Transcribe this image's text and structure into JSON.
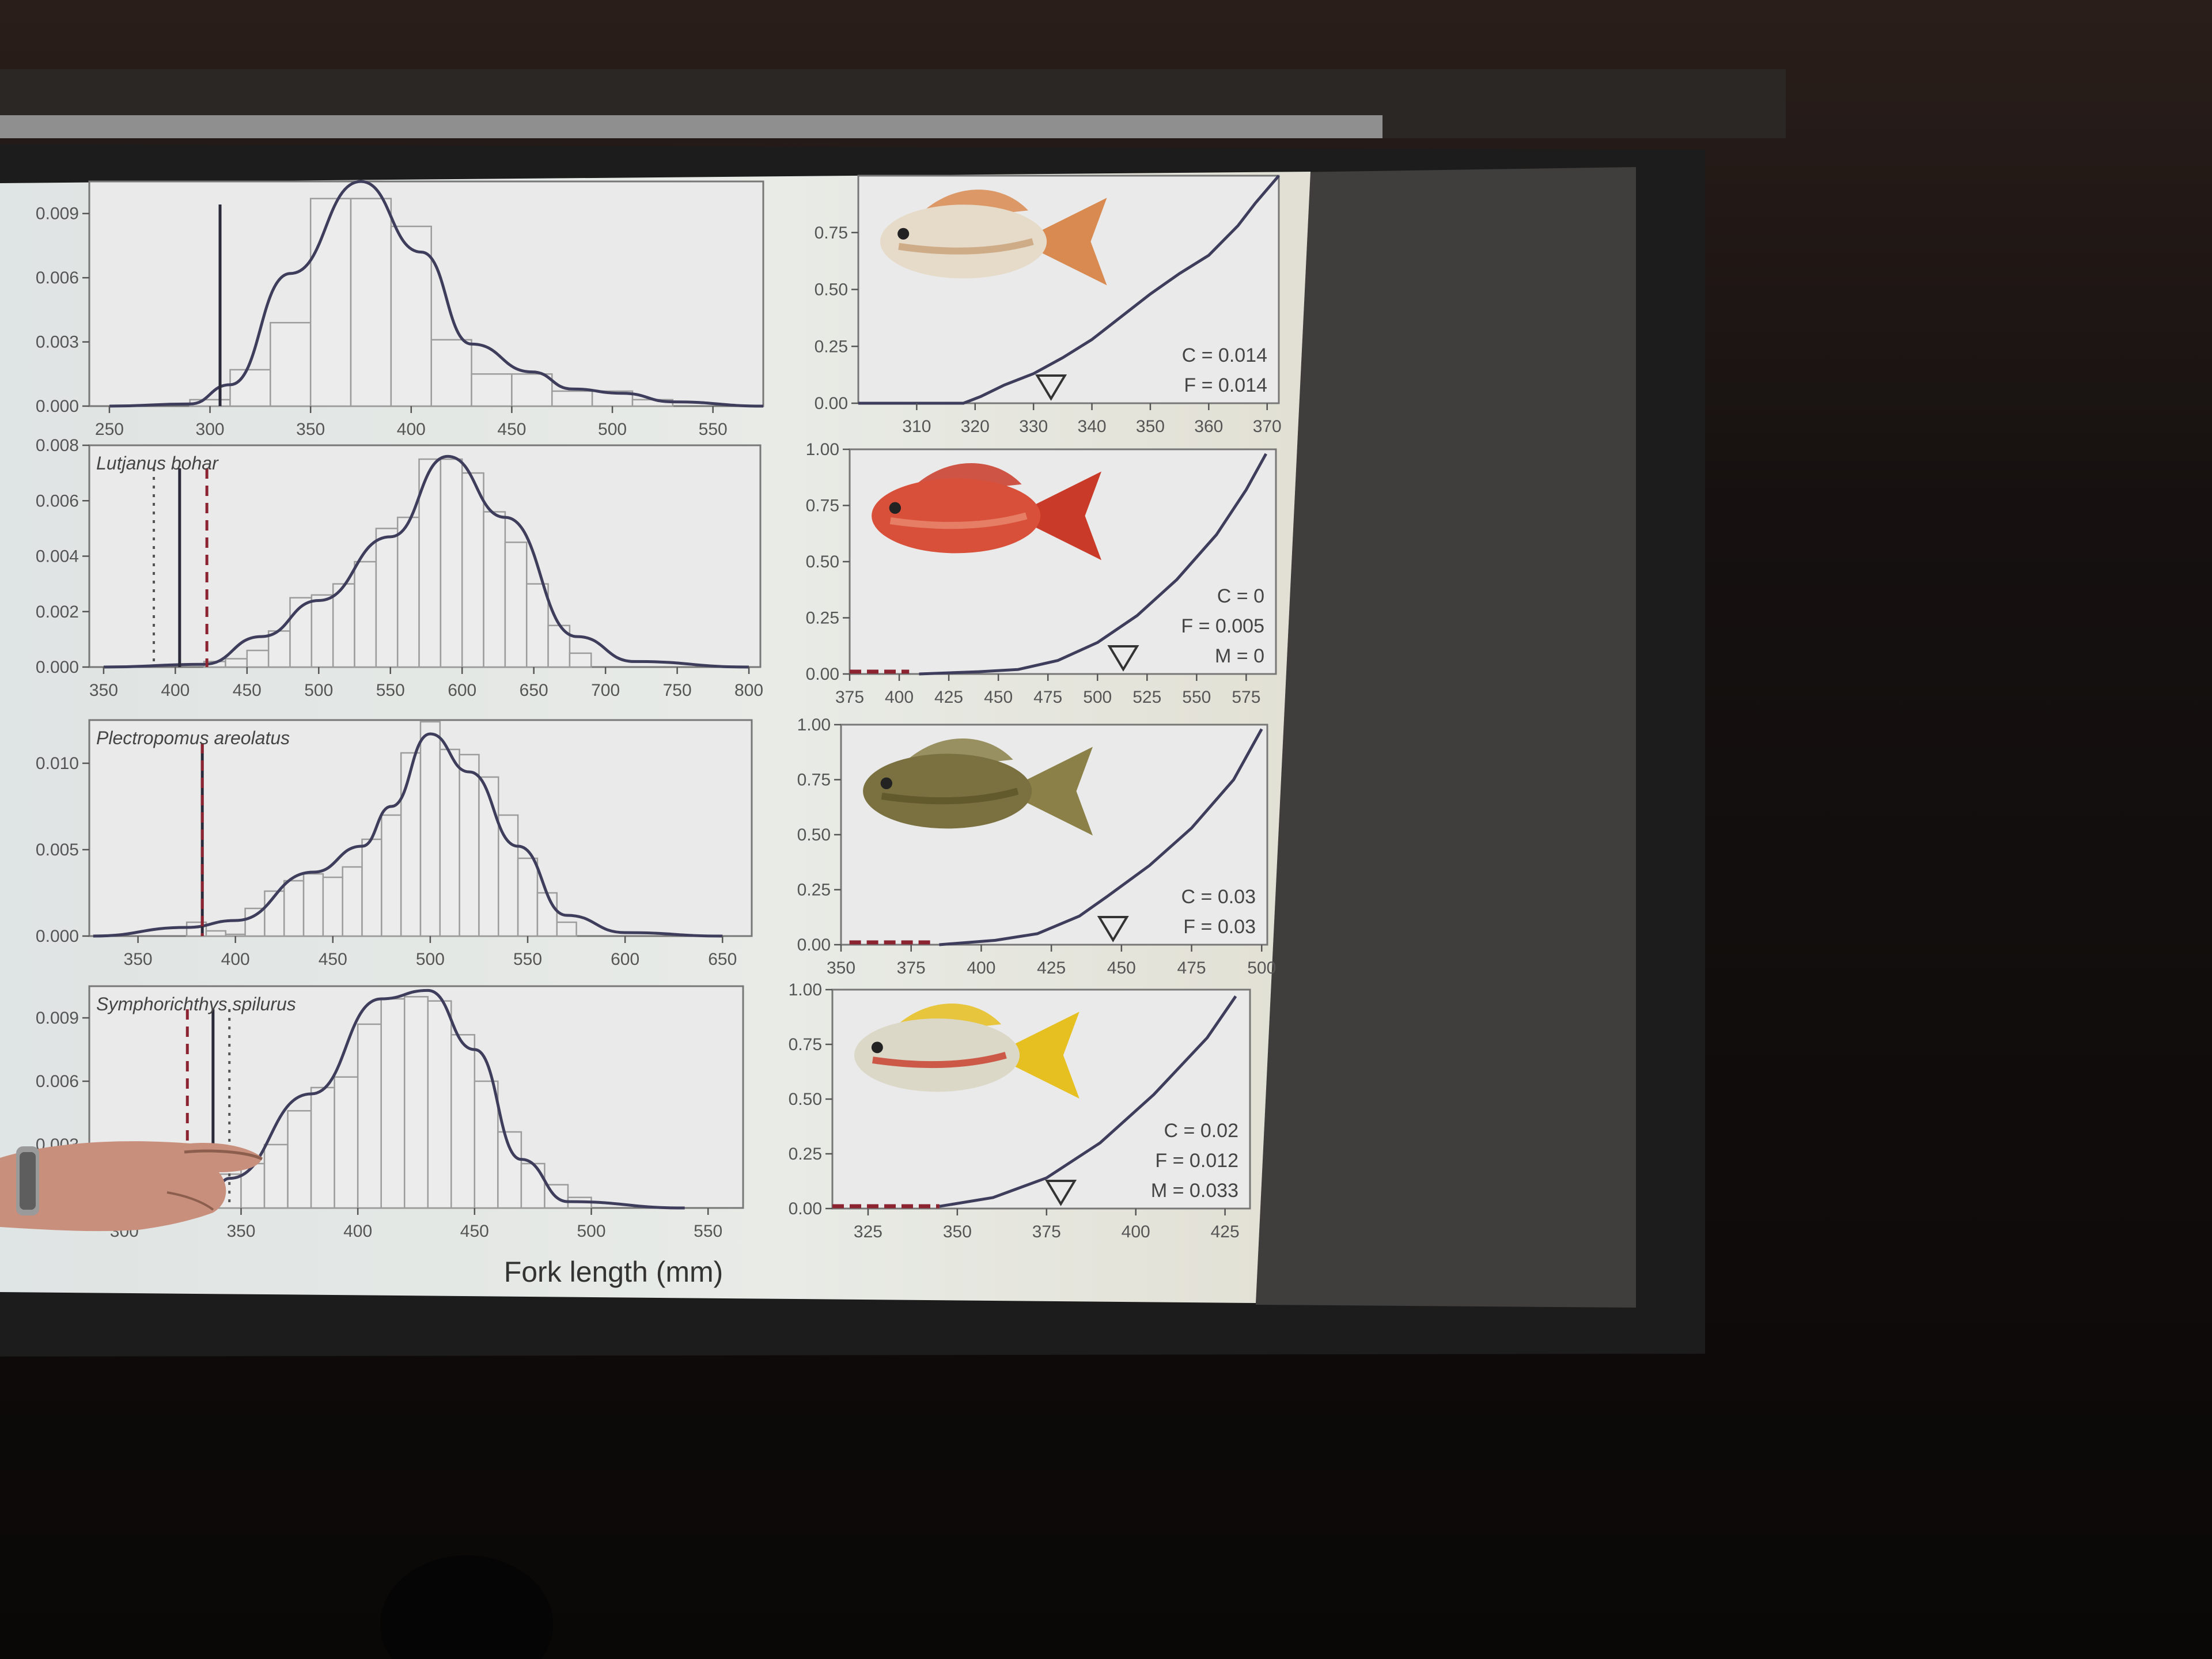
{
  "xlabel": "Fork length (mm)",
  "colors": {
    "curve": "#3e3d5c",
    "solid_line": "#2a2a3a",
    "dashed_line": "#8b2330",
    "bar_fill": "#ececec",
    "bar_edge": "#9c9c9c",
    "panel_bg": "#eaeaea"
  },
  "chart_data": [
    {
      "type": "bar",
      "panel": "histogram",
      "species": "",
      "xlim": [
        240,
        575
      ],
      "ylim": [
        0,
        0.0105
      ],
      "xticks": [
        250,
        300,
        350,
        400,
        450,
        500,
        550
      ],
      "yticks": [
        0,
        0.003,
        0.006,
        0.009
      ],
      "ytick_labels": [
        "0.000",
        "0.003",
        "0.006",
        "0.009"
      ],
      "bins": [
        [
          290,
          310,
          0.0003
        ],
        [
          310,
          330,
          0.0017
        ],
        [
          330,
          350,
          0.0039
        ],
        [
          350,
          370,
          0.0097
        ],
        [
          370,
          390,
          0.0097
        ],
        [
          390,
          410,
          0.0084
        ],
        [
          410,
          430,
          0.0031
        ],
        [
          430,
          450,
          0.0015
        ],
        [
          450,
          470,
          0.0015
        ],
        [
          470,
          490,
          0.0007
        ],
        [
          490,
          510,
          0.0007
        ],
        [
          510,
          530,
          0.0003
        ]
      ],
      "density": [
        [
          250,
          0.0
        ],
        [
          290,
          0.0001
        ],
        [
          310,
          0.001
        ],
        [
          340,
          0.0062
        ],
        [
          375,
          0.0105
        ],
        [
          405,
          0.0072
        ],
        [
          430,
          0.0029
        ],
        [
          460,
          0.0016
        ],
        [
          480,
          0.0008
        ],
        [
          505,
          0.0006
        ],
        [
          530,
          0.0002
        ],
        [
          575,
          0.0
        ]
      ],
      "vlines": [
        {
          "x": 305,
          "style": "solid"
        }
      ]
    },
    {
      "type": "line",
      "panel": "cumulative",
      "xlim": [
        300,
        372
      ],
      "ylim": [
        0,
        1
      ],
      "xticks": [
        310,
        320,
        330,
        340,
        350,
        360,
        370
      ],
      "yticks": [
        0,
        0.25,
        0.5,
        0.75
      ],
      "ytick_labels": [
        "0.00",
        "0.25",
        "0.50",
        "0.75"
      ],
      "x": [
        300,
        308,
        318,
        321,
        325,
        330,
        335,
        340,
        345,
        350,
        355,
        360,
        365,
        368,
        372
      ],
      "y": [
        0,
        0,
        0,
        0.03,
        0.08,
        0.13,
        0.2,
        0.28,
        0.38,
        0.48,
        0.57,
        0.65,
        0.78,
        0.88,
        1.0
      ],
      "marker_x": 333,
      "annotations": [
        "C = 0.014",
        "F = 0.014"
      ]
    },
    {
      "type": "bar",
      "panel": "histogram",
      "species": "Lutjanus bohar",
      "xlim": [
        340,
        808
      ],
      "ylim": [
        0,
        0.008
      ],
      "xticks": [
        350,
        400,
        450,
        500,
        550,
        600,
        650,
        700,
        750,
        800
      ],
      "yticks": [
        0,
        0.002,
        0.004,
        0.006,
        0.008
      ],
      "ytick_labels": [
        "0.000",
        "0.002",
        "0.004",
        "0.006",
        "0.008"
      ],
      "bins": [
        [
          420,
          435,
          0.0002
        ],
        [
          435,
          450,
          0.0003
        ],
        [
          450,
          465,
          0.0006
        ],
        [
          465,
          480,
          0.0013
        ],
        [
          480,
          495,
          0.0025
        ],
        [
          495,
          510,
          0.0026
        ],
        [
          510,
          525,
          0.003
        ],
        [
          525,
          540,
          0.0038
        ],
        [
          540,
          555,
          0.005
        ],
        [
          555,
          570,
          0.0054
        ],
        [
          570,
          585,
          0.0075
        ],
        [
          585,
          600,
          0.0075
        ],
        [
          600,
          615,
          0.007
        ],
        [
          615,
          630,
          0.0056
        ],
        [
          630,
          645,
          0.0045
        ],
        [
          645,
          660,
          0.003
        ],
        [
          660,
          675,
          0.0015
        ],
        [
          675,
          690,
          0.0005
        ]
      ],
      "density": [
        [
          350,
          0.0
        ],
        [
          420,
          0.0001
        ],
        [
          460,
          0.0011
        ],
        [
          500,
          0.0024
        ],
        [
          550,
          0.0047
        ],
        [
          590,
          0.0076
        ],
        [
          630,
          0.0054
        ],
        [
          680,
          0.0011
        ],
        [
          720,
          0.0002
        ],
        [
          800,
          0.0
        ]
      ],
      "vlines": [
        {
          "x": 403,
          "style": "solid"
        },
        {
          "x": 422,
          "style": "dashed"
        },
        {
          "x": 385,
          "style": "dotted"
        }
      ]
    },
    {
      "type": "line",
      "panel": "cumulative",
      "xlim": [
        375,
        590
      ],
      "ylim": [
        0,
        1
      ],
      "xticks": [
        375,
        400,
        425,
        450,
        475,
        500,
        525,
        550,
        575
      ],
      "yticks": [
        0,
        0.25,
        0.5,
        0.75,
        1.0
      ],
      "ytick_labels": [
        "0.00",
        "0.25",
        "0.50",
        "0.75",
        "1.00"
      ],
      "x": [
        410,
        440,
        460,
        480,
        500,
        520,
        540,
        560,
        575,
        585
      ],
      "y": [
        0,
        0.01,
        0.02,
        0.06,
        0.14,
        0.26,
        0.42,
        0.62,
        0.82,
        0.98
      ],
      "segments": [
        [
          375,
          405
        ]
      ],
      "marker_x": 513,
      "annotations": [
        "C = 0",
        "F = 0.005",
        "M = 0"
      ]
    },
    {
      "type": "bar",
      "panel": "histogram",
      "species": "Plectropomus areolatus",
      "xlim": [
        325,
        665
      ],
      "ylim": [
        0,
        0.0125
      ],
      "xticks": [
        350,
        400,
        450,
        500,
        550,
        600,
        650
      ],
      "yticks": [
        0,
        0.005,
        0.01
      ],
      "ytick_labels": [
        "0.000",
        "0.005",
        "0.010"
      ],
      "bins": [
        [
          375,
          385,
          0.0008
        ],
        [
          385,
          395,
          0.0003
        ],
        [
          395,
          405,
          0.0001
        ],
        [
          405,
          415,
          0.0016
        ],
        [
          415,
          425,
          0.0026
        ],
        [
          425,
          435,
          0.0032
        ],
        [
          435,
          445,
          0.0036
        ],
        [
          445,
          455,
          0.0034
        ],
        [
          455,
          465,
          0.004
        ],
        [
          465,
          475,
          0.0056
        ],
        [
          475,
          485,
          0.007
        ],
        [
          485,
          495,
          0.0106
        ],
        [
          495,
          505,
          0.0124
        ],
        [
          505,
          515,
          0.0108
        ],
        [
          515,
          525,
          0.0105
        ],
        [
          525,
          535,
          0.0092
        ],
        [
          535,
          545,
          0.007
        ],
        [
          545,
          555,
          0.0045
        ],
        [
          555,
          565,
          0.0025
        ],
        [
          565,
          575,
          0.0008
        ]
      ],
      "density": [
        [
          327,
          0.0
        ],
        [
          375,
          0.0005
        ],
        [
          400,
          0.0009
        ],
        [
          440,
          0.0037
        ],
        [
          465,
          0.0052
        ],
        [
          480,
          0.0075
        ],
        [
          500,
          0.0117
        ],
        [
          520,
          0.0095
        ],
        [
          545,
          0.0052
        ],
        [
          570,
          0.0012
        ],
        [
          600,
          0.0002
        ],
        [
          650,
          0.0
        ]
      ],
      "vlines": [
        {
          "x": 383,
          "style": "solid"
        },
        {
          "x": 383,
          "style": "dashed"
        }
      ]
    },
    {
      "type": "line",
      "panel": "cumulative",
      "xlim": [
        350,
        502
      ],
      "ylim": [
        0,
        1
      ],
      "xticks": [
        350,
        375,
        400,
        425,
        450,
        475,
        500
      ],
      "yticks": [
        0,
        0.25,
        0.5,
        0.75,
        1.0
      ],
      "ytick_labels": [
        "0.00",
        "0.25",
        "0.50",
        "0.75",
        "1.00"
      ],
      "x": [
        385,
        405,
        420,
        435,
        445,
        460,
        475,
        490,
        500
      ],
      "y": [
        0,
        0.02,
        0.05,
        0.13,
        0.22,
        0.36,
        0.53,
        0.75,
        0.98
      ],
      "segments": [
        [
          353,
          383
        ]
      ],
      "marker_x": 447,
      "annotations": [
        "C = 0.03",
        "F = 0.03"
      ]
    },
    {
      "type": "bar",
      "panel": "histogram",
      "species": "Symphorichthys spilurus",
      "xlim": [
        285,
        565
      ],
      "ylim": [
        0,
        0.0105
      ],
      "xticks": [
        300,
        350,
        400,
        450,
        500,
        550
      ],
      "yticks": [
        0,
        0.003,
        0.006,
        0.009
      ],
      "ytick_labels": [
        "0.000",
        "0.003",
        "0.006",
        "0.009"
      ],
      "bins": [
        [
          340,
          350,
          0.0016
        ],
        [
          350,
          360,
          0.0021
        ],
        [
          360,
          370,
          0.003
        ],
        [
          370,
          380,
          0.0046
        ],
        [
          380,
          390,
          0.0057
        ],
        [
          390,
          400,
          0.0062
        ],
        [
          400,
          410,
          0.0087
        ],
        [
          410,
          420,
          0.0099
        ],
        [
          420,
          430,
          0.01
        ],
        [
          430,
          440,
          0.0098
        ],
        [
          440,
          450,
          0.0082
        ],
        [
          450,
          460,
          0.006
        ],
        [
          460,
          470,
          0.0036
        ],
        [
          470,
          480,
          0.0021
        ],
        [
          480,
          490,
          0.0011
        ],
        [
          490,
          500,
          0.0005
        ]
      ],
      "density": [
        [
          325,
          0.0
        ],
        [
          335,
          0.0002
        ],
        [
          345,
          0.0014
        ],
        [
          380,
          0.0054
        ],
        [
          410,
          0.0099
        ],
        [
          430,
          0.0103
        ],
        [
          450,
          0.0075
        ],
        [
          470,
          0.0023
        ],
        [
          490,
          0.0003
        ],
        [
          540,
          0.0
        ]
      ],
      "vlines": [
        {
          "x": 327,
          "style": "dashed"
        },
        {
          "x": 338,
          "style": "solid"
        },
        {
          "x": 345,
          "style": "dotted"
        }
      ]
    },
    {
      "type": "line",
      "panel": "cumulative",
      "xlim": [
        315,
        432
      ],
      "ylim": [
        0,
        1
      ],
      "xticks": [
        325,
        350,
        375,
        400,
        425
      ],
      "yticks": [
        0,
        0.25,
        0.5,
        0.75,
        1.0
      ],
      "ytick_labels": [
        "0.00",
        "0.25",
        "0.50",
        "0.75",
        "1.00"
      ],
      "x": [
        345,
        360,
        375,
        390,
        405,
        420,
        428
      ],
      "y": [
        0.01,
        0.05,
        0.14,
        0.3,
        0.52,
        0.78,
        0.97
      ],
      "segments": [
        [
          315,
          345
        ]
      ],
      "marker_x": 379,
      "annotations": [
        "C = 0.02",
        "F = 0.012",
        "M = 0.033"
      ]
    }
  ]
}
